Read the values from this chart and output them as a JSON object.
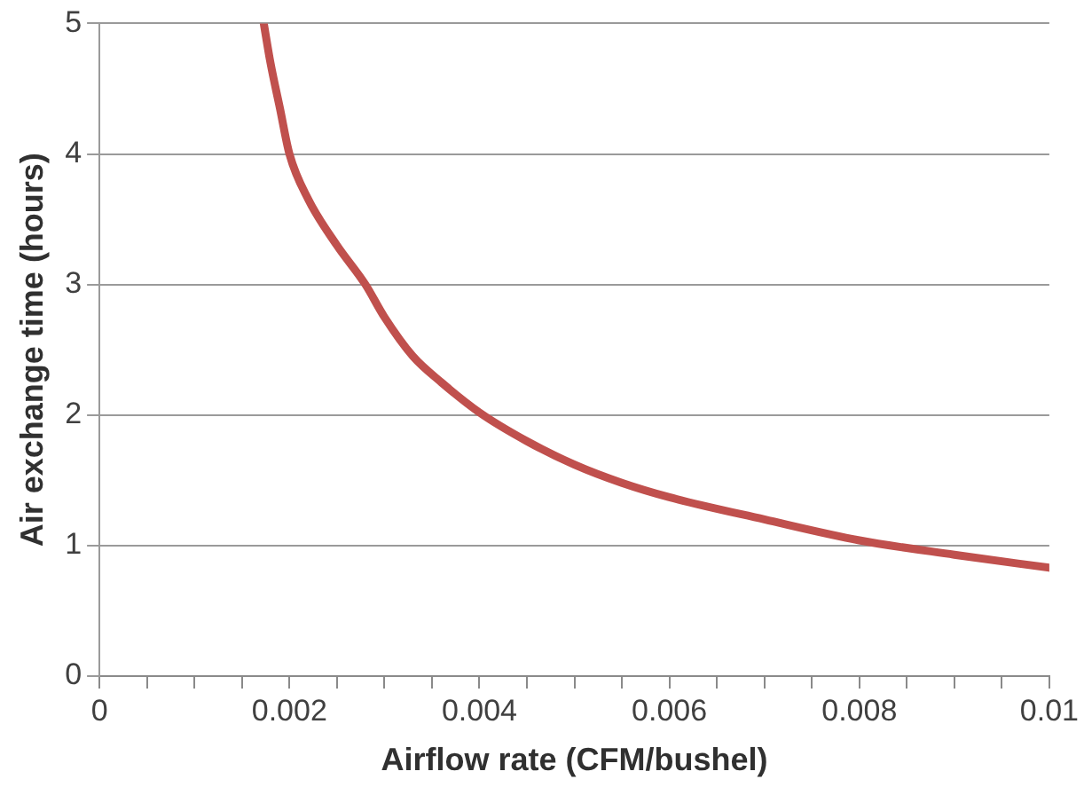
{
  "chart_data": {
    "type": "line",
    "xlabel": "Airflow rate (CFM/bushel)",
    "ylabel": "Air exchange time (hours)",
    "series": [
      {
        "color": "#c0504d",
        "x": [
          0.00173,
          0.0018,
          0.0019,
          0.002,
          0.0022,
          0.0025,
          0.0028,
          0.003,
          0.0033,
          0.0036,
          0.004,
          0.0045,
          0.005,
          0.0055,
          0.006,
          0.007,
          0.008,
          0.009,
          0.01
        ],
        "values": [
          5,
          4.7,
          4.35,
          4.0,
          3.65,
          3.3,
          3.0,
          2.75,
          2.45,
          2.25,
          2.02,
          1.8,
          1.62,
          1.48,
          1.37,
          1.2,
          1.04,
          0.93,
          0.83
        ]
      }
    ],
    "xlim": [
      0,
      0.01
    ],
    "xticks": [
      0,
      {
        "value": 0.0005,
        "label": null
      },
      {
        "value": 0.001,
        "label": null
      },
      {
        "value": 0.0015,
        "label": null
      },
      0.002,
      {
        "value": 0.0025,
        "label": null
      },
      {
        "value": 0.003,
        "label": null
      },
      {
        "value": 0.0035,
        "label": null
      },
      0.004,
      {
        "value": 0.0045,
        "label": null
      },
      {
        "value": 0.005,
        "label": null
      },
      {
        "value": 0.0055,
        "label": null
      },
      0.006,
      {
        "value": 0.0065,
        "label": null
      },
      {
        "value": 0.007,
        "label": null
      },
      {
        "value": 0.0075,
        "label": null
      },
      0.008,
      {
        "value": 0.0085,
        "label": null
      },
      {
        "value": 0.009,
        "label": null
      },
      {
        "value": 0.0095,
        "label": null
      },
      0.01
    ],
    "ylim": [
      0,
      5
    ],
    "yticks": [
      0,
      1,
      2,
      3,
      4,
      5
    ],
    "grid": "y",
    "legend": false,
    "marker": "none",
    "line_style": "solid"
  }
}
